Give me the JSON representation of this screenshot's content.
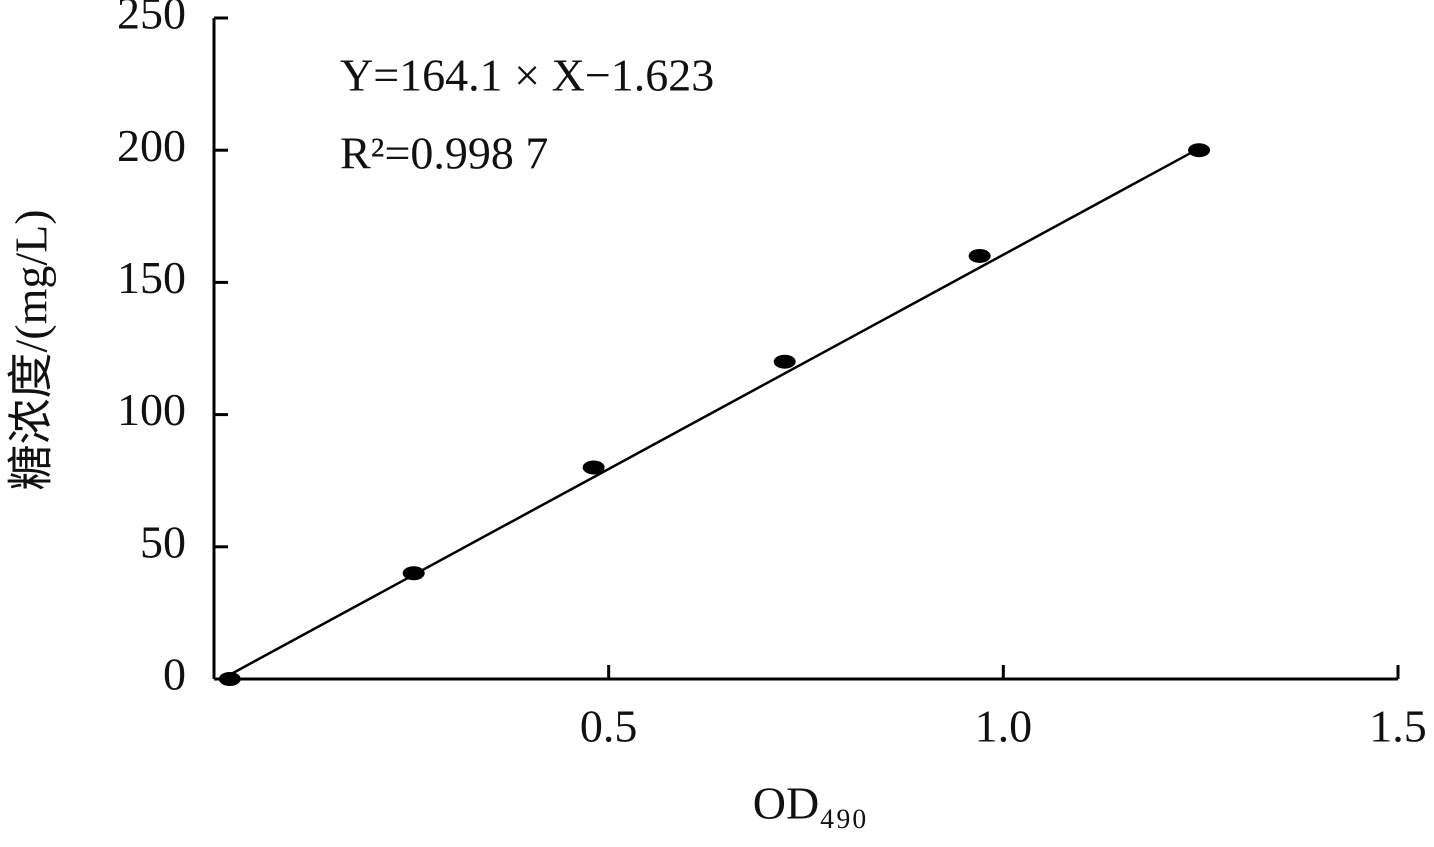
{
  "chart_data": {
    "type": "scatter",
    "x_label": "OD₄₉₀",
    "y_label": "糖浓度/(mg/L)",
    "annotations": [
      "Y=164.1 × X−1.623",
      "R²=0.998 7"
    ],
    "series": [
      {
        "style": "markers",
        "color": "#000000",
        "x": [
          0.02,
          0.253,
          0.481,
          0.723,
          0.97,
          1.248
        ],
        "values": [
          0,
          40,
          80,
          120,
          160,
          200
        ]
      },
      {
        "style": "line",
        "color": "#000000",
        "x": [
          0.01,
          1.25
        ],
        "values": [
          0,
          201
        ]
      }
    ],
    "xlim": [
      0,
      1.5
    ],
    "xticks": [
      0.5,
      {
        "value": 1,
        "label": "1.0"
      },
      1.5
    ],
    "ylim": [
      0,
      250
    ],
    "yticks": [
      0,
      50,
      100,
      150,
      200,
      250
    ]
  }
}
